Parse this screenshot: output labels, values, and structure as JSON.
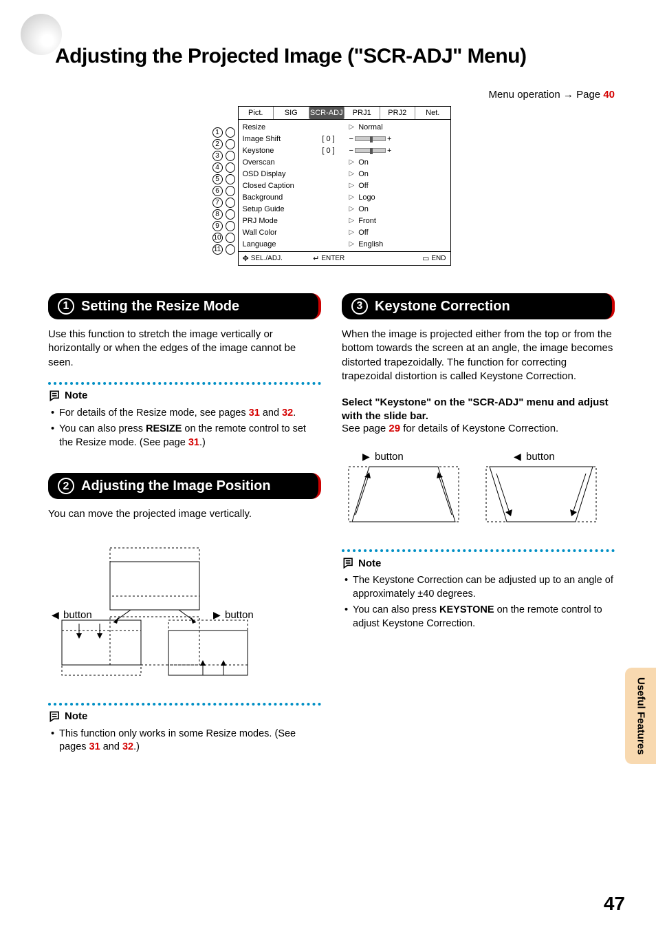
{
  "page_title": "Adjusting the Projected Image (\"SCR-ADJ\" Menu)",
  "menu_operation": {
    "text": "Menu operation",
    "page_label": "Page",
    "page_num": "40"
  },
  "osd": {
    "tabs": [
      "Pict.",
      "SIG",
      "SCR-ADJ",
      "PRJ1",
      "PRJ2",
      "Net."
    ],
    "active_tab": "SCR-ADJ",
    "rows": [
      {
        "n": "1",
        "label": "Resize",
        "type": "arrow",
        "value": "Normal"
      },
      {
        "n": "2",
        "label": "Image Shift",
        "type": "slider",
        "mid": "[      0 ]"
      },
      {
        "n": "3",
        "label": "Keystone",
        "type": "slider",
        "mid": "[      0 ]"
      },
      {
        "n": "4",
        "label": "Overscan",
        "type": "arrow",
        "value": "On"
      },
      {
        "n": "5",
        "label": "OSD Display",
        "type": "arrow",
        "value": "On"
      },
      {
        "n": "6",
        "label": "Closed Caption",
        "type": "arrow",
        "value": "Off"
      },
      {
        "n": "7",
        "label": "Background",
        "type": "arrow",
        "value": "Logo"
      },
      {
        "n": "8",
        "label": "Setup Guide",
        "type": "arrow",
        "value": "On"
      },
      {
        "n": "9",
        "label": "PRJ Mode",
        "type": "arrow",
        "value": "Front"
      },
      {
        "n": "10",
        "label": "Wall Color",
        "type": "arrow",
        "value": "Off"
      },
      {
        "n": "11",
        "label": "Language",
        "type": "arrow",
        "value": "English"
      }
    ],
    "footer": {
      "sel": "SEL./ADJ.",
      "enter": "ENTER",
      "end": "END"
    }
  },
  "section1": {
    "num": "1",
    "title": "Setting the Resize Mode",
    "body": "Use this function to stretch the image vertically or horizontally or when the edges of the image cannot be seen.",
    "note_label": "Note",
    "notes": [
      {
        "pre": "For details of the Resize mode, see pages ",
        "ref1": "31",
        "mid": " and ",
        "ref2": "32",
        "post": "."
      },
      {
        "pre": "You can also press ",
        "bold": "RESIZE",
        "mid": " on the remote control to set the Resize mode. (See page ",
        "ref1": "31",
        "post": ".)"
      }
    ]
  },
  "section2": {
    "num": "2",
    "title": "Adjusting the Image Position",
    "body": "You can move the projected image vertically.",
    "btn_left": "button",
    "btn_right": "button",
    "note_label": "Note",
    "notes": [
      {
        "pre": "This function only works in some Resize modes. (See pages ",
        "ref1": "31",
        "mid": " and ",
        "ref2": "32",
        "post": ".)"
      }
    ]
  },
  "section3": {
    "num": "3",
    "title": "Keystone Correction",
    "body": "When the image is projected either from the top or from the bottom towards the screen at an angle, the image becomes distorted trapezoidally. The function for correcting trapezoidal distortion is called Keystone Correction.",
    "instr_hdr": "Select \"Keystone\" on the \"SCR-ADJ\" menu and adjust with the slide bar.",
    "instr_sub_pre": "See page ",
    "instr_sub_ref": "29",
    "instr_sub_post": " for details of Keystone Correction.",
    "btn_r": "button",
    "btn_l": "button",
    "note_label": "Note",
    "notes": [
      {
        "text": "The Keystone Correction can be adjusted up to an angle of approximately ±40 degrees."
      },
      {
        "pre": "You can also press ",
        "bold": "KEYSTONE",
        "post": " on the remote control to adjust Keystone Correction."
      }
    ]
  },
  "side_tab": "Useful Features",
  "page_number": "47"
}
